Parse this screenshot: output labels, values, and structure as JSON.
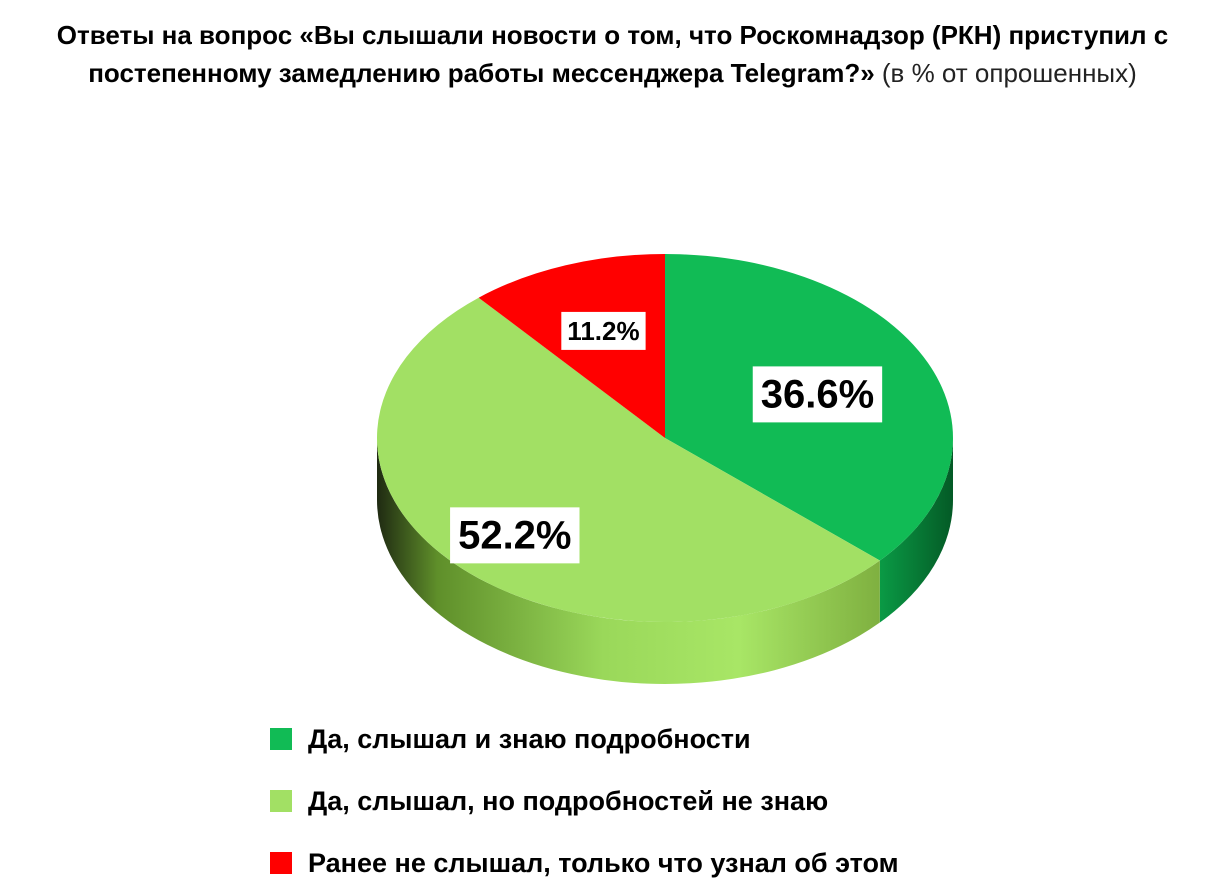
{
  "chart_data": {
    "type": "pie",
    "title_bold": "Ответы на вопрос «Вы слышали новости о том, что Роскомнадзор (РКН) приступил с постепенному замедлению работы мессенджера Telegram?»",
    "title_normal": " (в % от опрошенных)",
    "slices": [
      {
        "name": "Да, слышал и знаю подробности",
        "value": 36.6,
        "label": "36.6%",
        "color": "#11bb55",
        "side_color": "#078a3c"
      },
      {
        "name": "Да, слышал, но подробностей не знаю",
        "value": 52.2,
        "label": "52.2%",
        "color": "#a2e064",
        "side_color": "#7cc043"
      },
      {
        "name": "Ранее не слышал, только что узнал об этом",
        "value": 11.2,
        "label": "11.2%",
        "color": "#ff0000",
        "side_color": "#c00000"
      }
    ],
    "legend_position": "bottom"
  }
}
